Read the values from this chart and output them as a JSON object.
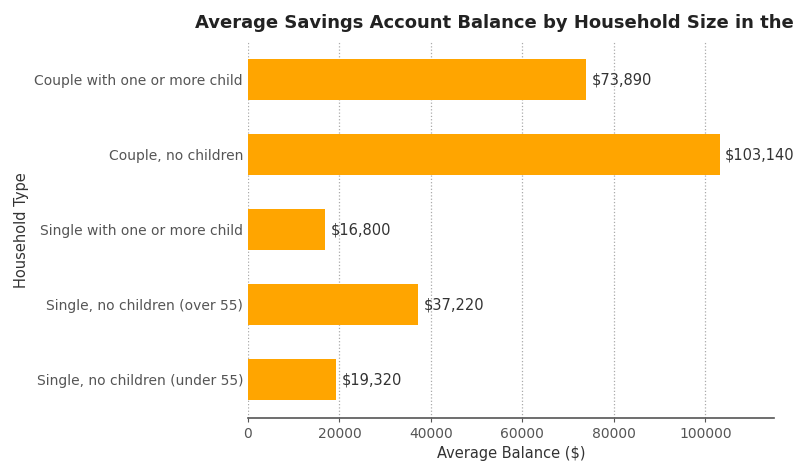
{
  "title": "Average Savings Account Balance by Household Size in the US",
  "xlabel": "Average Balance ($)",
  "ylabel": "Household Type",
  "categories": [
    "Single, no children (under 55)",
    "Single, no children (over 55)",
    "Single with one or more child",
    "Couple, no children",
    "Couple with one or more child"
  ],
  "values": [
    19320,
    37220,
    16800,
    103140,
    73890
  ],
  "labels": [
    "$19,320",
    "$37,220",
    "$16,800",
    "$103,140",
    "$73,890"
  ],
  "bar_color": "#FFA500",
  "background_color": "#ffffff",
  "title_fontsize": 13,
  "label_fontsize": 10.5,
  "tick_fontsize": 10,
  "xlim": [
    0,
    115000
  ],
  "xticks": [
    0,
    20000,
    40000,
    60000,
    80000,
    100000
  ],
  "xtick_labels": [
    "0",
    "20000",
    "40000",
    "60000",
    "80000",
    "100000"
  ]
}
